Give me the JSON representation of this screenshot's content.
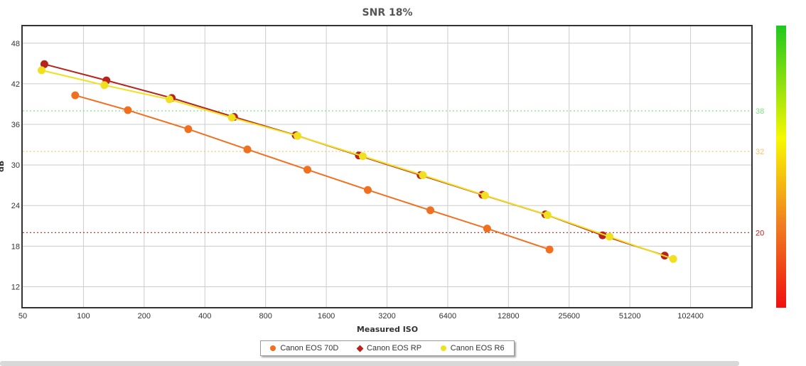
{
  "chart_data": {
    "type": "line",
    "title": "SNR 18%",
    "xlabel": "Measured ISO",
    "ylabel": "dB",
    "x_scale": "log2",
    "xlim": [
      50,
      204800
    ],
    "ylim": [
      9,
      50.5
    ],
    "x_ticks": [
      50,
      100,
      200,
      400,
      800,
      1600,
      3200,
      6400,
      12800,
      25600,
      51200,
      102400
    ],
    "x_tick_labels": [
      "50",
      "100",
      "200",
      "400",
      "800",
      "1600",
      "3200",
      "6400",
      "12800",
      "25600",
      "51200",
      "102400"
    ],
    "y_ticks": [
      12,
      18,
      24,
      30,
      36,
      42,
      48
    ],
    "reference_lines": [
      {
        "value": 38,
        "label": "38",
        "color": "#7ee27e"
      },
      {
        "value": 32,
        "label": "32",
        "color": "#f5c36b"
      },
      {
        "value": 20,
        "label": "20",
        "color": "#b22222"
      }
    ],
    "grid": true,
    "legend_position": "bottom-center",
    "series": [
      {
        "name": "Canon EOS 70D",
        "color": "#f07020",
        "marker": "circle",
        "x": [
          91,
          166,
          331,
          650,
          1290,
          2570,
          5250,
          10040,
          20460
        ],
        "y": [
          40.3,
          38.1,
          35.3,
          32.3,
          29.3,
          26.3,
          23.3,
          20.6,
          17.5
        ]
      },
      {
        "name": "Canon EOS RP",
        "color": "#b8241c",
        "marker": "diamond",
        "x": [
          64,
          130,
          274,
          558,
          1128,
          2320,
          4697,
          9506,
          19500,
          37500,
          76200
        ],
        "y": [
          44.9,
          42.5,
          39.9,
          37.1,
          34.4,
          31.4,
          28.5,
          25.6,
          22.7,
          19.6,
          16.6
        ]
      },
      {
        "name": "Canon EOS R6",
        "color": "#f0e020",
        "marker": "circle",
        "x": [
          62,
          127,
          267,
          544,
          1152,
          2427,
          4818,
          9796,
          19996,
          40600,
          84000
        ],
        "y": [
          44.0,
          41.8,
          39.7,
          37.0,
          34.3,
          31.3,
          28.5,
          25.5,
          22.6,
          19.4,
          16.1
        ]
      }
    ]
  }
}
